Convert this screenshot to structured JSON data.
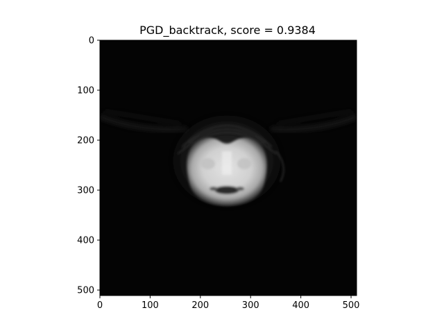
{
  "figure": {
    "title": "PGD_backtrack, score = 0.9384"
  },
  "chart_data": {
    "type": "heatmap",
    "title": "PGD_backtrack, score = 0.9384",
    "xlabel": "",
    "ylabel": "",
    "xlim": [
      0,
      511
    ],
    "ylim": [
      511,
      0
    ],
    "x_ticks": [
      0,
      100,
      200,
      300,
      400,
      500
    ],
    "y_ticks": [
      0,
      100,
      200,
      300,
      400,
      500
    ],
    "image_size": [
      512,
      512
    ],
    "colormap": "gray",
    "grid": false,
    "legend": "none"
  },
  "colors": {
    "background": "#ffffff",
    "image_background": "#040404",
    "object_bright": "#d8d8d8",
    "axis": "#000000"
  }
}
